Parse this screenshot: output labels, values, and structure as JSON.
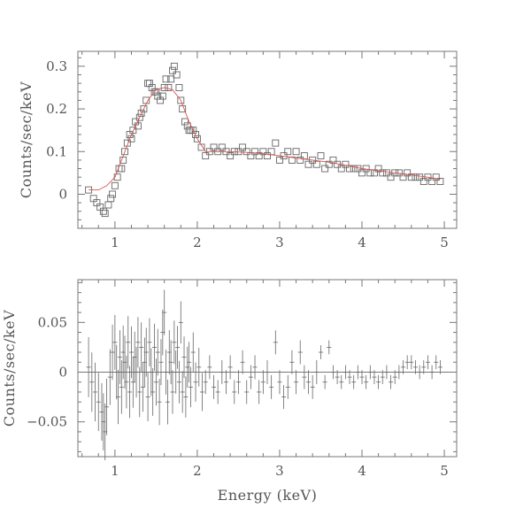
{
  "chart_data": [
    {
      "type": "scatter",
      "panel": "top",
      "ylabel": "Counts/sec/keV",
      "xlabel": "",
      "xlim": [
        0.55,
        5.15
      ],
      "ylim": [
        -0.08,
        0.335
      ],
      "xticks": [
        1,
        2,
        3,
        4,
        5
      ],
      "xtick_labels": [
        "1",
        "2",
        "3",
        "4",
        "5"
      ],
      "yticks": [
        0,
        0.1,
        0.2,
        0.3
      ],
      "ytick_labels": [
        "0",
        "0.1",
        "0.2",
        "0.3"
      ],
      "grid": false,
      "legend": "none",
      "series": [
        {
          "marker": "open-square",
          "x": [
            0.68,
            0.74,
            0.78,
            0.82,
            0.86,
            0.88,
            0.92,
            0.95,
            0.97,
            1.0,
            1.03,
            1.05,
            1.08,
            1.1,
            1.12,
            1.15,
            1.18,
            1.2,
            1.22,
            1.25,
            1.28,
            1.3,
            1.32,
            1.35,
            1.38,
            1.4,
            1.42,
            1.45,
            1.48,
            1.5,
            1.52,
            1.55,
            1.58,
            1.6,
            1.62,
            1.65,
            1.68,
            1.7,
            1.72,
            1.75,
            1.78,
            1.8,
            1.82,
            1.85,
            1.88,
            1.9,
            1.92,
            1.95,
            1.98,
            2.0,
            2.05,
            2.1,
            2.15,
            2.2,
            2.25,
            2.3,
            2.35,
            2.4,
            2.45,
            2.5,
            2.55,
            2.6,
            2.65,
            2.7,
            2.75,
            2.8,
            2.85,
            2.9,
            2.95,
            3.0,
            3.05,
            3.1,
            3.15,
            3.2,
            3.25,
            3.3,
            3.35,
            3.4,
            3.45,
            3.5,
            3.55,
            3.6,
            3.65,
            3.7,
            3.75,
            3.8,
            3.85,
            3.9,
            3.95,
            4.0,
            4.05,
            4.1,
            4.15,
            4.2,
            4.25,
            4.3,
            4.35,
            4.4,
            4.45,
            4.5,
            4.55,
            4.6,
            4.65,
            4.7,
            4.75,
            4.8,
            4.85,
            4.9,
            4.95
          ],
          "y": [
            0.01,
            -0.01,
            -0.02,
            -0.03,
            -0.04,
            -0.045,
            -0.025,
            -0.01,
            0.0,
            0.02,
            0.04,
            0.06,
            0.06,
            0.08,
            0.1,
            0.12,
            0.14,
            0.13,
            0.15,
            0.17,
            0.16,
            0.18,
            0.19,
            0.2,
            0.22,
            0.26,
            0.26,
            0.25,
            0.24,
            0.24,
            0.23,
            0.22,
            0.23,
            0.25,
            0.27,
            0.25,
            0.27,
            0.29,
            0.3,
            0.28,
            0.25,
            0.22,
            0.2,
            0.17,
            0.16,
            0.15,
            0.15,
            0.15,
            0.14,
            0.13,
            0.11,
            0.09,
            0.1,
            0.11,
            0.1,
            0.11,
            0.1,
            0.09,
            0.1,
            0.1,
            0.11,
            0.1,
            0.09,
            0.1,
            0.09,
            0.1,
            0.09,
            0.1,
            0.12,
            0.08,
            0.09,
            0.1,
            0.08,
            0.1,
            0.08,
            0.09,
            0.07,
            0.08,
            0.07,
            0.09,
            0.06,
            0.07,
            0.08,
            0.07,
            0.06,
            0.07,
            0.06,
            0.06,
            0.06,
            0.05,
            0.06,
            0.05,
            0.05,
            0.06,
            0.05,
            0.05,
            0.04,
            0.05,
            0.05,
            0.04,
            0.05,
            0.04,
            0.04,
            0.04,
            0.03,
            0.04,
            0.03,
            0.04,
            0.03
          ]
        },
        {
          "marker": "line-model",
          "x": [
            0.68,
            0.8,
            0.9,
            1.0,
            1.1,
            1.2,
            1.3,
            1.4,
            1.5,
            1.6,
            1.7,
            1.8,
            1.9,
            2.0,
            2.1,
            2.2,
            2.4,
            2.6,
            2.8,
            3.0,
            3.2,
            3.4,
            3.6,
            3.8,
            4.0,
            4.2,
            4.4,
            4.6,
            4.8,
            4.95
          ],
          "y": [
            0.01,
            0.01,
            0.02,
            0.04,
            0.09,
            0.14,
            0.18,
            0.22,
            0.245,
            0.25,
            0.245,
            0.22,
            0.17,
            0.13,
            0.1,
            0.1,
            0.1,
            0.098,
            0.095,
            0.09,
            0.085,
            0.08,
            0.075,
            0.068,
            0.06,
            0.055,
            0.05,
            0.045,
            0.04,
            0.035
          ]
        }
      ]
    },
    {
      "type": "scatter",
      "panel": "bottom",
      "ylabel": "Counts/sec/keV",
      "xlabel": "Energy (keV)",
      "xlim": [
        0.55,
        5.15
      ],
      "ylim": [
        -0.085,
        0.093
      ],
      "xticks": [
        1,
        2,
        3,
        4,
        5
      ],
      "xtick_labels": [
        "1",
        "2",
        "3",
        "4",
        "5"
      ],
      "yticks": [
        -0.05,
        0,
        0.05
      ],
      "ytick_labels": [
        "−0.05",
        "0",
        "0.05"
      ],
      "grid": false,
      "legend": "none",
      "series": [
        {
          "marker": "errorbar-cross",
          "x": [
            0.68,
            0.72,
            0.76,
            0.8,
            0.84,
            0.86,
            0.88,
            0.9,
            0.94,
            0.97,
            1.0,
            1.02,
            1.04,
            1.06,
            1.08,
            1.1,
            1.12,
            1.14,
            1.16,
            1.18,
            1.2,
            1.22,
            1.24,
            1.26,
            1.28,
            1.3,
            1.32,
            1.34,
            1.36,
            1.38,
            1.4,
            1.42,
            1.44,
            1.46,
            1.48,
            1.5,
            1.52,
            1.54,
            1.56,
            1.58,
            1.6,
            1.62,
            1.64,
            1.66,
            1.68,
            1.7,
            1.72,
            1.74,
            1.76,
            1.78,
            1.8,
            1.82,
            1.84,
            1.86,
            1.88,
            1.9,
            1.92,
            1.95,
            1.98,
            2.02,
            2.06,
            2.1,
            2.15,
            2.2,
            2.25,
            2.3,
            2.35,
            2.4,
            2.45,
            2.5,
            2.55,
            2.6,
            2.65,
            2.7,
            2.75,
            2.8,
            2.85,
            2.9,
            2.95,
            3.0,
            3.05,
            3.1,
            3.15,
            3.2,
            3.25,
            3.3,
            3.35,
            3.4,
            3.45,
            3.5,
            3.55,
            3.6,
            3.65,
            3.7,
            3.75,
            3.8,
            3.85,
            3.9,
            3.95,
            4.0,
            4.05,
            4.1,
            4.15,
            4.2,
            4.25,
            4.3,
            4.35,
            4.4,
            4.45,
            4.5,
            4.55,
            4.6,
            4.65,
            4.7,
            4.75,
            4.8,
            4.85,
            4.9,
            4.95
          ],
          "y": [
            0.005,
            -0.01,
            -0.02,
            -0.03,
            -0.04,
            -0.05,
            -0.06,
            -0.035,
            -0.005,
            0.02,
            0.03,
            0.0,
            -0.025,
            0.015,
            -0.015,
            0.02,
            0.01,
            -0.01,
            0.03,
            -0.02,
            0.02,
            -0.01,
            0.015,
            0.0,
            0.03,
            -0.02,
            0.025,
            -0.015,
            0.01,
            0.02,
            -0.025,
            0.03,
            0.0,
            -0.02,
            0.025,
            -0.01,
            0.02,
            -0.03,
            0.01,
            0.04,
            0.06,
            0.0,
            -0.03,
            0.02,
            0.01,
            -0.02,
            0.03,
            0.0,
            0.025,
            -0.01,
            0.05,
            -0.02,
            0.015,
            -0.025,
            0.005,
            0.01,
            -0.015,
            0.02,
            -0.01,
            0.005,
            -0.02,
            -0.01,
            0.005,
            -0.015,
            -0.02,
            0.0,
            -0.01,
            0.005,
            -0.02,
            -0.01,
            0.01,
            -0.02,
            -0.005,
            0.005,
            -0.02,
            -0.01,
            0.0,
            -0.015,
            0.03,
            -0.01,
            -0.025,
            -0.015,
            0.01,
            -0.01,
            0.02,
            -0.005,
            -0.01,
            -0.015,
            0.0,
            0.02,
            -0.01,
            0.025,
            0.0,
            -0.005,
            -0.01,
            0.0,
            -0.005,
            -0.01,
            0.0,
            -0.005,
            -0.01,
            0.0,
            -0.005,
            -0.01,
            -0.005,
            0.0,
            -0.01,
            -0.005,
            0.0,
            0.005,
            0.01,
            0.01,
            0.005,
            0.0,
            0.005,
            0.01,
            0.0,
            0.01,
            0.005
          ]
        }
      ]
    }
  ]
}
